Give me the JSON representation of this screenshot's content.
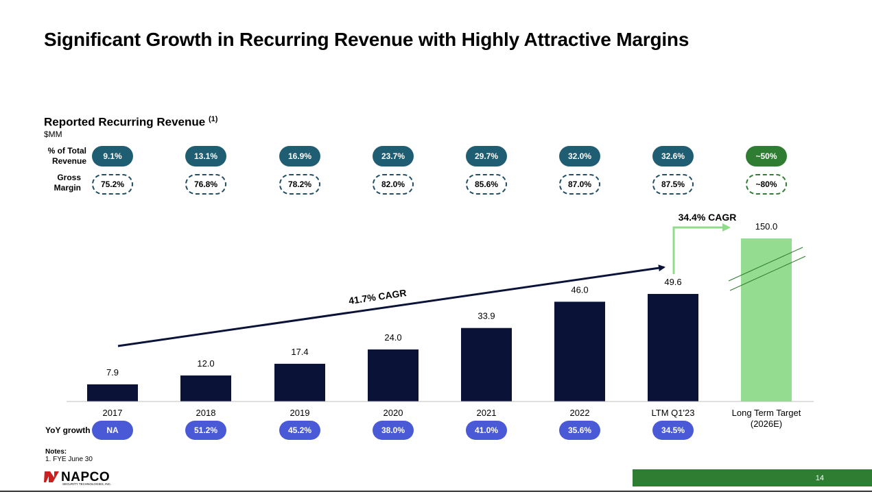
{
  "title": "Significant Growth in Recurring Revenue with Highly Attractive Margins",
  "chart_subtitle": "Reported Recurring Revenue",
  "chart_subtitle_note": "(1)",
  "unit": "$MM",
  "row_labels": {
    "pct_total_line1": "% of Total",
    "pct_total_line2": "Revenue",
    "gross_line1": "Gross",
    "gross_line2": "Margin",
    "yoy": "YoY growth"
  },
  "pct_total_revenue": [
    "9.1%",
    "13.1%",
    "16.9%",
    "23.7%",
    "29.7%",
    "32.0%",
    "32.6%",
    "~50%"
  ],
  "gross_margin": [
    "75.2%",
    "76.8%",
    "78.2%",
    "82.0%",
    "85.6%",
    "87.0%",
    "87.5%",
    "~80%"
  ],
  "yoy_growth": [
    "NA",
    "51.2%",
    "45.2%",
    "38.0%",
    "41.0%",
    "35.6%",
    "34.5%"
  ],
  "colors": {
    "bar": "#0b1238",
    "target_bar": "#94dc8f",
    "pill_dark": "#1f5e72",
    "pill_green": "#2e7d32",
    "yoy_pill": "#4a5ad6",
    "arrow_green": "#8fdc8a",
    "page_bar": "#2e7d32"
  },
  "chart_data": {
    "type": "bar",
    "categories": [
      "2017",
      "2018",
      "2019",
      "2020",
      "2021",
      "2022",
      "LTM Q1'23",
      "Long Term Target|(2026E)"
    ],
    "values": [
      7.9,
      12.0,
      17.4,
      24.0,
      33.9,
      46.0,
      49.6,
      150.0
    ],
    "value_labels": [
      "7.9",
      "12.0",
      "17.4",
      "24.0",
      "33.9",
      "46.0",
      "49.6",
      "150.0"
    ],
    "ylim": [
      0,
      150
    ],
    "axis_break_on_last": true,
    "grid": false,
    "annotations": {
      "cagr_historic": "41.7% CAGR",
      "cagr_target": "34.4% CAGR"
    }
  },
  "notes": {
    "header": "Notes:",
    "items": [
      "1.     FYE June 30"
    ]
  },
  "logo": {
    "name": "NAPCO",
    "tagline": "SECURITY TECHNOLOGIES, INC."
  },
  "page_number": "14"
}
